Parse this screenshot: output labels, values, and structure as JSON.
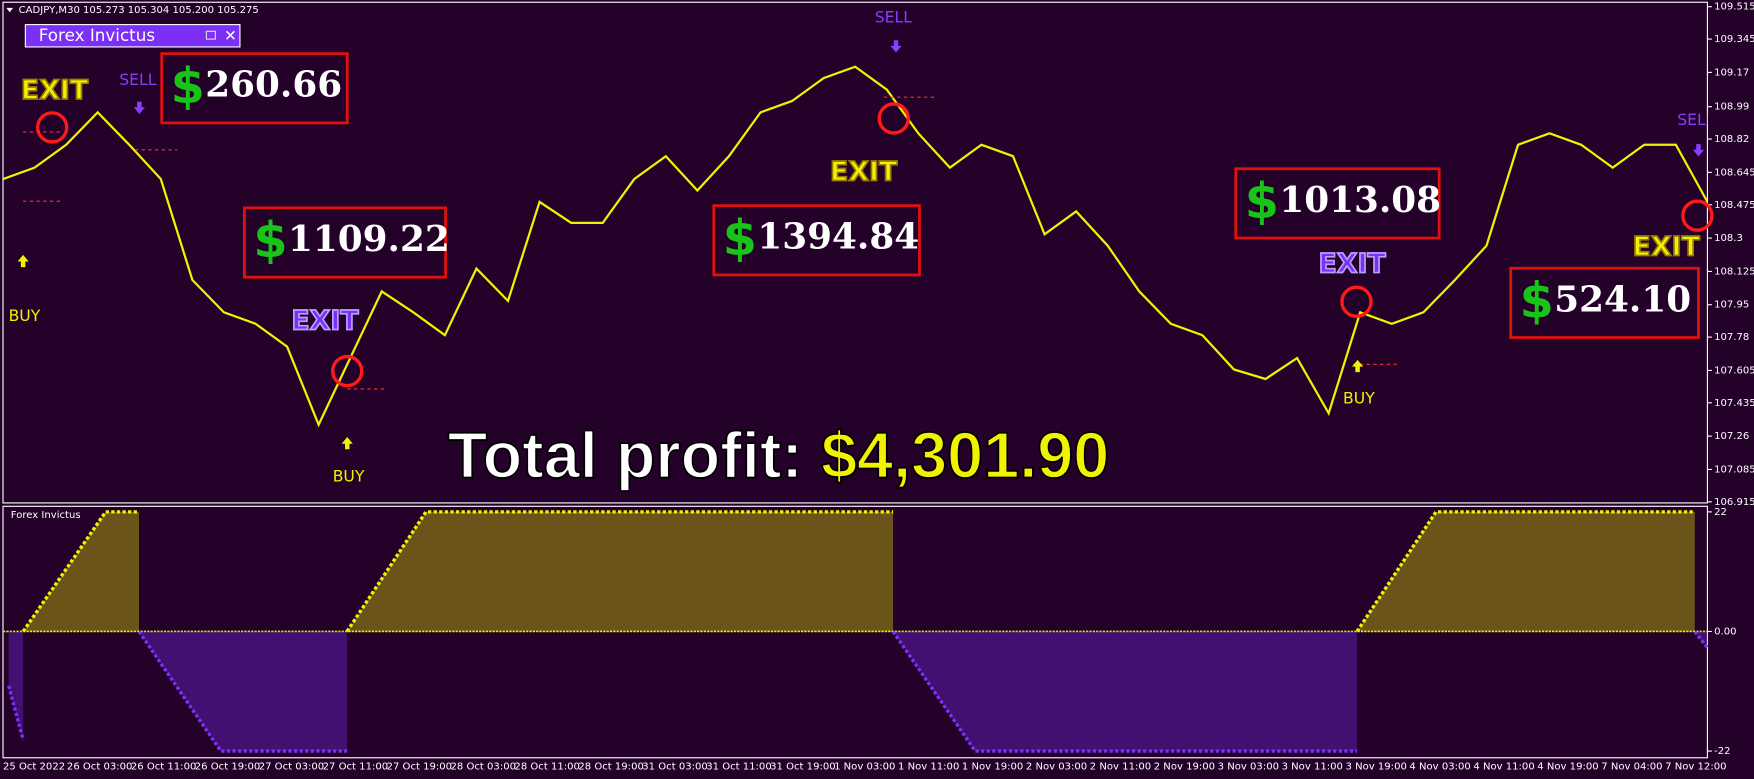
{
  "header": {
    "symbol_line": "CADJPY,M30  105.273 105.304 105.200 105.275",
    "panel_title": "Forex Invictus",
    "indicator_title": "Forex Invictus"
  },
  "chart_data": {
    "type": "line",
    "x": [
      0,
      1,
      2,
      3,
      4,
      5,
      6,
      7,
      8,
      9,
      10,
      11,
      12,
      13,
      14,
      15,
      16,
      17,
      18,
      19,
      20,
      21,
      22,
      23,
      24,
      25,
      26,
      27,
      28,
      29,
      30,
      31,
      32,
      33,
      34,
      35,
      36,
      37,
      38,
      39,
      40,
      41,
      42,
      43,
      44,
      45,
      46,
      47,
      48,
      49,
      50,
      51,
      52,
      53,
      54
    ],
    "series": [
      {
        "color": "#f2f200",
        "values": [
          108.61,
          108.67,
          108.79,
          108.96,
          108.79,
          108.61,
          108.08,
          107.91,
          107.85,
          107.73,
          107.32,
          107.67,
          108.02,
          107.91,
          107.79,
          108.14,
          107.97,
          108.49,
          108.38,
          108.38,
          108.61,
          108.73,
          108.55,
          108.73,
          108.96,
          109.02,
          109.14,
          109.2,
          109.08,
          108.85,
          108.67,
          108.79,
          108.73,
          108.32,
          108.44,
          108.26,
          108.02,
          107.85,
          107.79,
          107.61,
          107.56,
          107.67,
          107.38,
          107.91,
          107.85,
          107.91,
          108.08,
          108.26,
          108.79,
          108.85,
          108.79,
          108.67,
          108.79,
          108.79,
          108.49
        ]
      }
    ],
    "xlim": [
      0,
      54
    ],
    "ylim": [
      106.915,
      109.515
    ],
    "yticks": [
      106.915,
      107.085,
      107.26,
      107.435,
      107.605,
      107.78,
      107.95,
      108.125,
      108.3,
      108.475,
      108.645,
      108.82,
      108.99,
      109.17,
      109.345,
      109.515
    ],
    "time_labels": [
      "25 Oct 2022",
      "26 Oct 03:00",
      "26 Oct 11:00",
      "26 Oct 19:00",
      "27 Oct 03:00",
      "27 Oct 11:00",
      "27 Oct 19:00",
      "28 Oct 03:00",
      "28 Oct 11:00",
      "28 Oct 19:00",
      "31 Oct 03:00",
      "31 Oct 11:00",
      "31 Oct 19:00",
      "1 Nov 03:00",
      "1 Nov 11:00",
      "1 Nov 19:00",
      "2 Nov 03:00",
      "2 Nov 11:00",
      "2 Nov 19:00",
      "3 Nov 03:00",
      "3 Nov 11:00",
      "3 Nov 19:00",
      "4 Nov 03:00",
      "4 Nov 11:00",
      "4 Nov 19:00",
      "7 Nov 04:00",
      "7 Nov 12:00"
    ]
  },
  "indicator": {
    "type": "area",
    "x": [
      0.18,
      0.64,
      null,
      0.64,
      3.25,
      4.31,
      null,
      4.31,
      6.9,
      10.9,
      null,
      10.9,
      13.4,
      28.2,
      null,
      28.2,
      30.8,
      42.9,
      null,
      42.9,
      45.4,
      53.6,
      null,
      53.6,
      54
    ],
    "values": [
      -10,
      -20,
      null,
      0,
      22,
      22,
      null,
      0,
      -22,
      -22,
      null,
      0,
      22,
      22,
      null,
      0,
      -22,
      -22,
      null,
      0,
      22,
      22,
      null,
      0,
      -3
    ],
    "positive_color": "#f2f200",
    "negative_color": "#7b2ff7",
    "ylim": [
      -22,
      22
    ],
    "yticks": [
      -22,
      {
        "value": 0,
        "label": "0.00"
      },
      22
    ]
  },
  "signals": [
    "EXIT",
    "SELL",
    "BUY",
    "EXIT",
    "BUY",
    "SELL",
    "EXIT",
    "EXIT",
    "BUY",
    "SELL",
    "EXIT"
  ],
  "profits": {
    "currency": "$",
    "amounts": [
      "260.66",
      "1109.22",
      "1394.84",
      "1013.08",
      "524.10"
    ]
  },
  "total": {
    "label": "Total profit:",
    "amount": "$4,301.90"
  }
}
